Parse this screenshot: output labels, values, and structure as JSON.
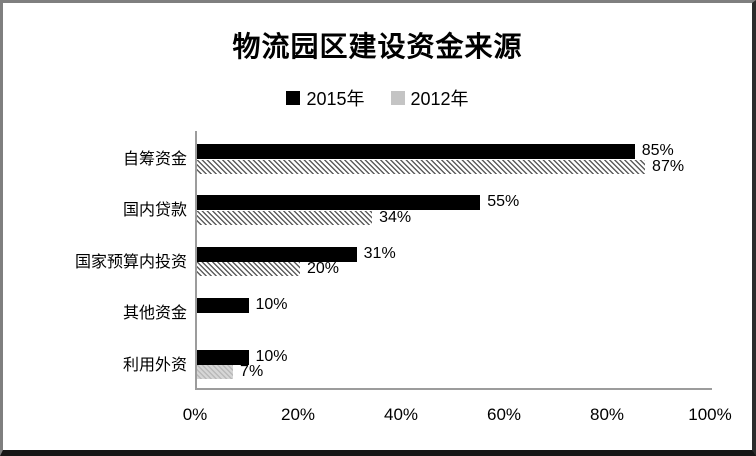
{
  "window": {
    "background_color": "#ffffff",
    "frame_border_color_topleft": "#7f7f7f",
    "frame_border_color_bottomright": "#161616"
  },
  "colors": {
    "series_2015": "#000000",
    "series_2012_hatch_line": "#5d5d5d",
    "series_2012_swatch": "#c4c4c4",
    "axis_line": "#9c9c9c",
    "text": "#000000"
  },
  "chart_data": {
    "type": "bar",
    "orientation": "horizontal",
    "title": "物流园区建设资金来源",
    "xlabel": "",
    "ylabel": "",
    "xlim": [
      0,
      100
    ],
    "x_ticks": [
      "0%",
      "20%",
      "40%",
      "60%",
      "80%",
      "100%"
    ],
    "grid": false,
    "legend_position": "top",
    "value_suffix": "%",
    "categories": [
      "自筹资金",
      "国内贷款",
      "国家预算内投资",
      "其他资金",
      "利用外资"
    ],
    "series": [
      {
        "name": "2015年",
        "style": "solid-black",
        "values": [
          85,
          55,
          31,
          10,
          10
        ],
        "labels": [
          "85%",
          "55%",
          "31%",
          "10%",
          "10%"
        ]
      },
      {
        "name": "2012年",
        "style": "diagonal-hatch",
        "values": [
          87,
          34,
          20,
          null,
          7
        ],
        "labels": [
          "87%",
          "34%",
          "20%",
          null,
          "7%"
        ],
        "fills": [
          "hatch",
          "hatch",
          "hatch",
          null,
          "gray"
        ]
      }
    ]
  }
}
